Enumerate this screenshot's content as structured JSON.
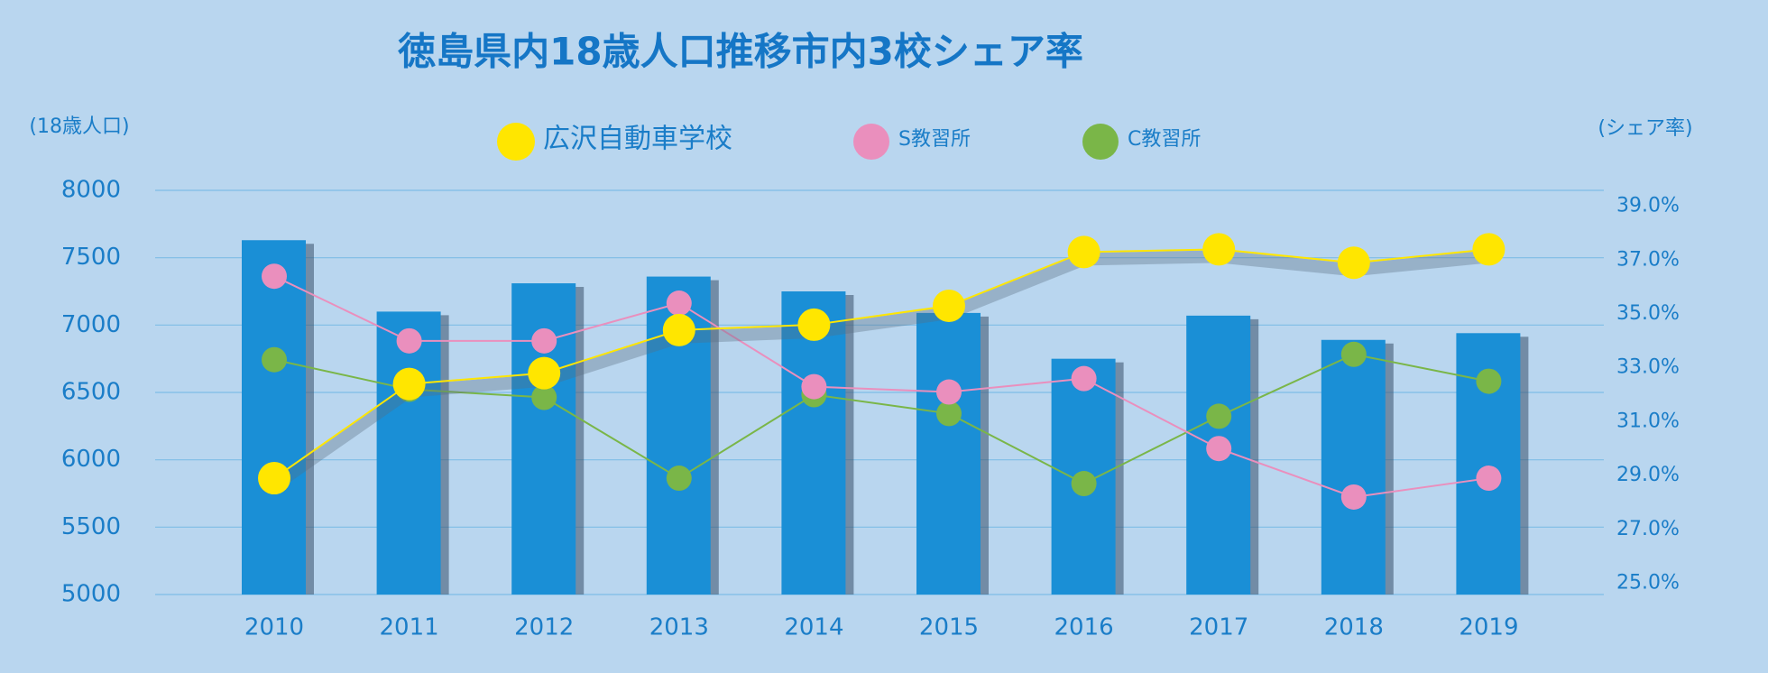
{
  "chart_data": {
    "type": "bar",
    "title": "徳島県内18歳人口推移市内3校シェア率",
    "y_label": "(18歳人口)",
    "y2_label": "(シェア率)",
    "categories": [
      "2010",
      "2011",
      "2012",
      "2013",
      "2014",
      "2015",
      "2016",
      "2017",
      "2018",
      "2019"
    ],
    "values": [
      7630,
      7100,
      7310,
      7360,
      7250,
      7090,
      6750,
      7070,
      6890,
      6940
    ],
    "color": "#1a8fd6",
    "ylim": [
      5000,
      8000
    ],
    "yticks": [
      5000,
      5500,
      6000,
      6500,
      7000,
      7500,
      8000
    ],
    "y2lim": [
      24.58,
      39.59
    ],
    "y2ticks": [
      {
        "value": 25,
        "label": "25.0%"
      },
      {
        "value": 27,
        "label": "27.0%"
      },
      {
        "value": 29,
        "label": "29.0%"
      },
      {
        "value": 31,
        "label": "31.0%"
      },
      {
        "value": 33,
        "label": "33.0%"
      },
      {
        "value": 35,
        "label": "35.0%"
      },
      {
        "value": 37,
        "label": "37.0%"
      },
      {
        "value": 39,
        "label": "39.0%"
      }
    ],
    "grid": true,
    "series": [
      {
        "name": "広沢自動車学校",
        "color": "#ffe600",
        "axis": "y2",
        "values": [
          28.9,
          32.4,
          32.8,
          34.4,
          34.6,
          35.3,
          37.3,
          37.4,
          36.9,
          37.4
        ]
      },
      {
        "name": "S教習所",
        "color": "#ea8fbd",
        "axis": "y2",
        "values": [
          36.4,
          34.0,
          34.0,
          35.4,
          32.3,
          32.1,
          32.6,
          30.0,
          28.2,
          28.9
        ]
      },
      {
        "name": "C教習所",
        "color": "#7ab648",
        "axis": "y2",
        "values": [
          33.3,
          32.2,
          31.9,
          28.9,
          32.0,
          31.3,
          28.7,
          31.2,
          33.5,
          32.5
        ]
      }
    ]
  }
}
